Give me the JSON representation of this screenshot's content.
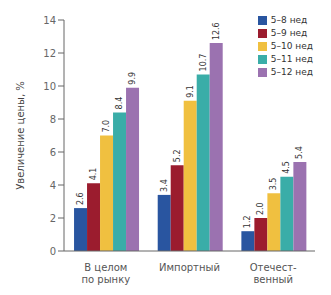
{
  "chart_data": {
    "type": "bar",
    "categories": [
      "В целом\nпо рынку",
      "Импортный",
      "Отечест-\nвенный"
    ],
    "series": [
      {
        "name": "5–8 нед",
        "color": "#2955a0",
        "values": [
          2.6,
          3.4,
          1.2
        ],
        "value_labels": [
          "2.6",
          "3.4",
          "1.2"
        ]
      },
      {
        "name": "5–9 нед",
        "color": "#9b1c2e",
        "values": [
          4.1,
          5.2,
          2.0
        ],
        "value_labels": [
          "4.1",
          "5.2",
          "2.0"
        ]
      },
      {
        "name": "5–10 нед",
        "color": "#f0c040",
        "values": [
          7.0,
          9.1,
          3.5
        ],
        "value_labels": [
          "7.0",
          "9.1",
          "3.5"
        ]
      },
      {
        "name": "5–11 нед",
        "color": "#3aada8",
        "values": [
          8.4,
          10.7,
          4.5
        ],
        "value_labels": [
          "8.4",
          "10.7",
          "4.5"
        ]
      },
      {
        "name": "5–12 нед",
        "color": "#9b72b0",
        "values": [
          9.9,
          12.6,
          5.4
        ],
        "value_labels": [
          "9.9",
          "12.6",
          "5.4"
        ]
      }
    ],
    "ylabel": "Увеличение цены, %",
    "ylim": [
      0,
      14
    ],
    "yticks": [
      0,
      2,
      4,
      6,
      8,
      10,
      12,
      14
    ],
    "data_labels": true,
    "grid": false,
    "legend": "upper right"
  }
}
